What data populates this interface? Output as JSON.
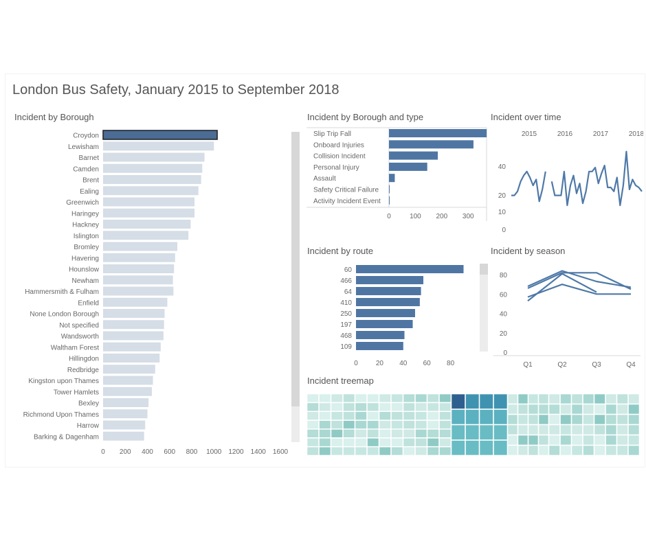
{
  "dashboard": {
    "title": "London Bus Safety,  January 2015 to September 2018"
  },
  "colors": {
    "primary": "#4f76a3",
    "highlight": "#4a6c95",
    "muted": "#d5dde6",
    "line": "#4e79a7"
  },
  "chart_data": [
    {
      "id": "borough",
      "type": "bar",
      "title": "Incident by Borough",
      "orientation": "horizontal",
      "categories": [
        "Croydon",
        "Lewisham",
        "Barnet",
        "Camden",
        "Brent",
        "Ealing",
        "Greenwich",
        "Haringey",
        "Hackney",
        "Islington",
        "Bromley",
        "Havering",
        "Hounslow",
        "Newham",
        "Hammersmith & Fulham",
        "Enfield",
        "None London Borough",
        "Not specified",
        "Wandsworth",
        "Waltham Forest",
        "Hillingdon",
        "Redbridge",
        "Kingston upon Thames",
        "Tower Hamlets",
        "Bexley",
        "Richmond Upon Thames",
        "Harrow",
        "Barking & Dagenham"
      ],
      "values": [
        1030,
        1000,
        915,
        895,
        885,
        860,
        825,
        825,
        790,
        770,
        670,
        650,
        640,
        630,
        635,
        580,
        555,
        550,
        545,
        520,
        510,
        470,
        450,
        440,
        410,
        400,
        380,
        370
      ],
      "selected": "Croydon",
      "xticks": [
        0,
        200,
        400,
        600,
        800,
        1000,
        1200,
        1400,
        1600
      ],
      "xlim": [
        0,
        1600
      ]
    },
    {
      "id": "type",
      "type": "bar",
      "title": "Incident by Borough and type",
      "orientation": "horizontal",
      "categories": [
        "Slip Trip Fall",
        "Onboard Injuries",
        "Collision Incident",
        "Personal Injury",
        "Assault",
        "Safety Critical Failure",
        "Activity Incident Event"
      ],
      "values": [
        370,
        320,
        185,
        145,
        22,
        2,
        1
      ],
      "xticks": [
        0,
        100,
        200,
        300
      ],
      "xlim": [
        0,
        380
      ]
    },
    {
      "id": "time",
      "type": "line",
      "title": "Incident over time",
      "years": [
        "2015",
        "2016",
        "2017",
        "2018"
      ],
      "yticks": [
        0,
        10,
        20,
        40
      ],
      "values": [
        17,
        17,
        19,
        24,
        27,
        29,
        26,
        22,
        25,
        14,
        20,
        29,
        null,
        24,
        17,
        17,
        17,
        29,
        12,
        22,
        27,
        18,
        23,
        13,
        19,
        29,
        29,
        31,
        23,
        28,
        32,
        21,
        21,
        19,
        26,
        12,
        22,
        39,
        20,
        25,
        22,
        21,
        19
      ],
      "ylim": [
        0,
        42
      ]
    },
    {
      "id": "route",
      "type": "bar",
      "title": "Incident by route",
      "orientation": "horizontal",
      "categories": [
        "60",
        "466",
        "64",
        "410",
        "250",
        "197",
        "468",
        "109"
      ],
      "values": [
        91,
        57,
        55,
        54,
        50,
        48,
        41,
        40
      ],
      "xticks": [
        0,
        20,
        40,
        60,
        80
      ],
      "xlim": [
        0,
        100
      ]
    },
    {
      "id": "season",
      "type": "line",
      "title": "Incident by season",
      "categories": [
        "Q1",
        "Q2",
        "Q3",
        "Q4"
      ],
      "yticks": [
        0,
        20,
        40,
        60,
        80
      ],
      "ylim": [
        0,
        90
      ],
      "series": [
        {
          "values": [
            53,
            81,
            62,
            null
          ]
        },
        {
          "values": [
            57,
            70,
            60,
            60
          ]
        },
        {
          "values": [
            66,
            82,
            82,
            65
          ]
        },
        {
          "values": [
            68,
            84,
            73,
            67
          ]
        }
      ]
    },
    {
      "id": "treemap",
      "type": "heatmap",
      "title": "Incident treemap"
    }
  ]
}
